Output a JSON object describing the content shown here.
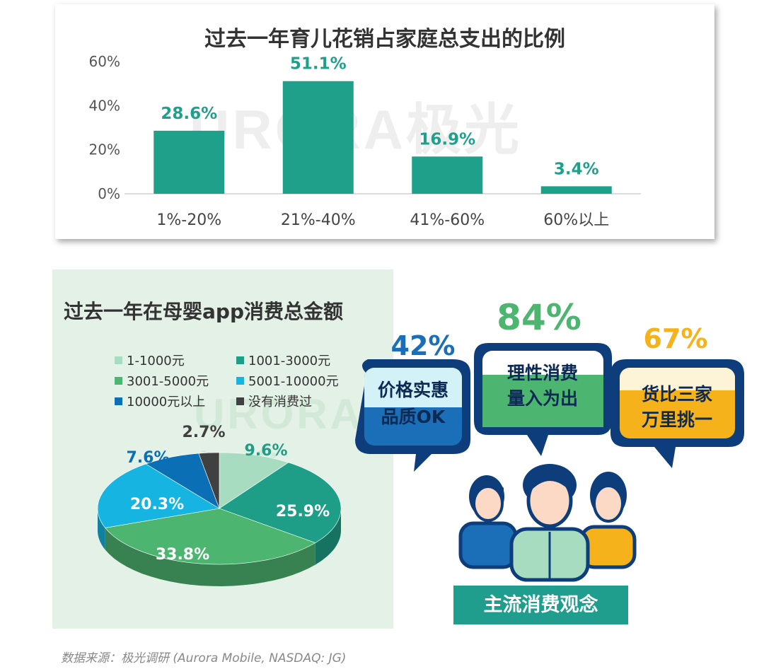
{
  "watermark": "URORA极光",
  "chart_data": [
    {
      "type": "bar",
      "title": "过去一年育儿花销占家庭总支出的比例",
      "categories": [
        "1%-20%",
        "21%-40%",
        "41%-60%",
        "60%以上"
      ],
      "values": [
        28.6,
        51.1,
        16.9,
        3.4
      ],
      "value_labels": [
        "28.6%",
        "51.1%",
        "16.9%",
        "3.4%"
      ],
      "yticks": [
        "0%",
        "20%",
        "40%",
        "60%"
      ],
      "ylim": [
        0,
        60
      ],
      "grid": false,
      "color": "#1fa08b"
    },
    {
      "type": "pie",
      "title": "过去一年在母婴app消费总金额",
      "legend_position": "top",
      "categories": [
        "1-1000元",
        "1001-3000元",
        "3001-5000元",
        "5001-10000元",
        "10000元以上",
        "没有消费过"
      ],
      "values": [
        9.6,
        25.9,
        33.8,
        20.3,
        7.6,
        2.7
      ],
      "value_labels": [
        "9.6%",
        "25.9%",
        "33.8%",
        "20.3%",
        "7.6%",
        "2.7%"
      ],
      "colors": [
        "#a7dcc0",
        "#1f9e87",
        "#4cb56f",
        "#16b4e0",
        "#0b6fb5",
        "#404040"
      ]
    }
  ],
  "concepts": {
    "banner": "主流消费观念",
    "bubbles": [
      {
        "percent": "42%",
        "line1": "价格实惠",
        "line2": "品质OK"
      },
      {
        "percent": "84%",
        "line1": "理性消费",
        "line2": "量入为出"
      },
      {
        "percent": "67%",
        "line1": "货比三家",
        "line2": "万里挑一"
      }
    ]
  },
  "source": "数据来源：极光调研 (Aurora Mobile, NASDAQ: JG)"
}
